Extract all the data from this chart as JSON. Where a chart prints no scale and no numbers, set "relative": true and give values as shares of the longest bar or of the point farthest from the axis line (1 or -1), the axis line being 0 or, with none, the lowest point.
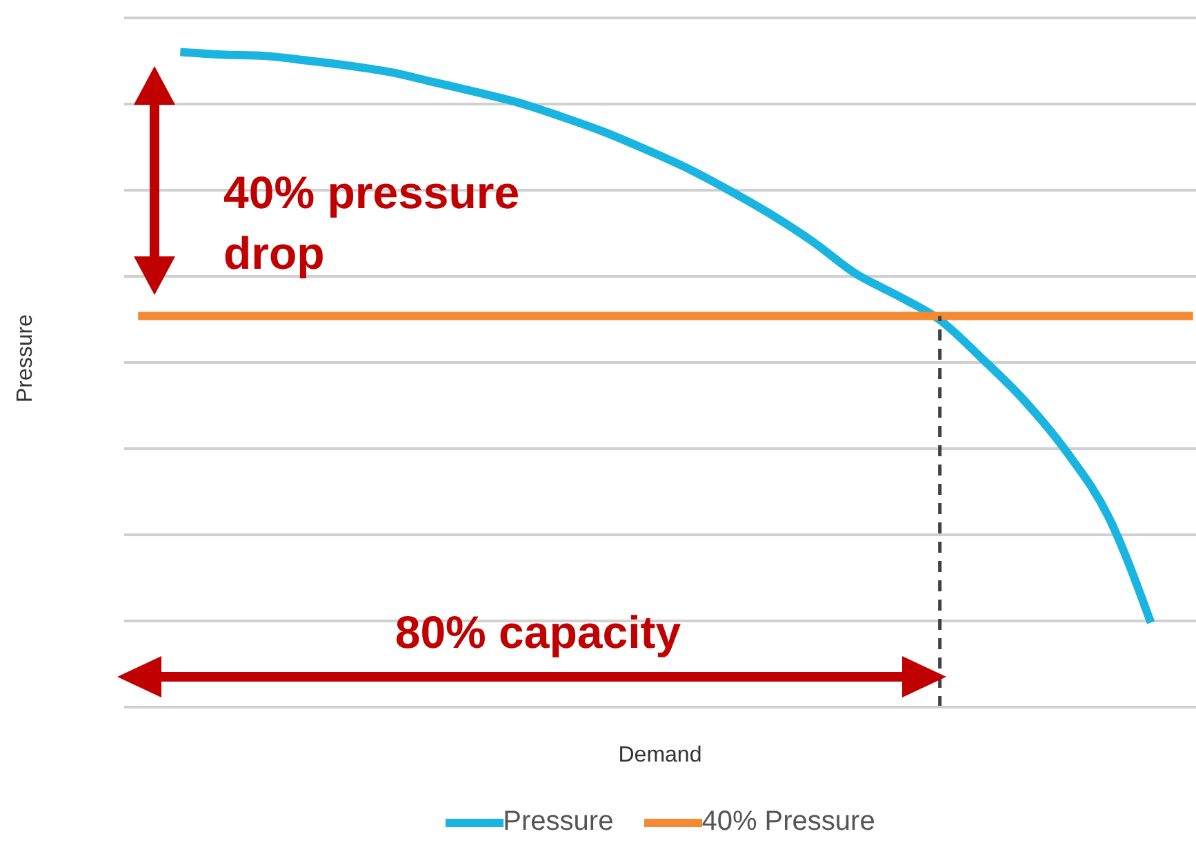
{
  "chart_data": {
    "type": "line",
    "relative": true,
    "xlabel": "Demand",
    "ylabel": "Pressure",
    "grid": "y",
    "legend": "bottom",
    "marker": "none",
    "categories": [
      null,
      null,
      null,
      null,
      null,
      null,
      null,
      null,
      null,
      null,
      null,
      null,
      null,
      null,
      null,
      null,
      null,
      null,
      null,
      null,
      null,
      null,
      null,
      null,
      null,
      null
    ],
    "series": [
      {
        "name": "Pressure",
        "color": "#1ab4e0",
        "values": [
          null,
          1.0,
          0.996,
          0.994,
          0.987,
          0.979,
          0.969,
          0.954,
          0.939,
          0.923,
          0.902,
          0.879,
          0.852,
          0.823,
          0.789,
          0.752,
          0.71,
          0.662,
          0.628,
          0.591,
          0.532,
          0.468,
          0.39,
          0.29,
          0.129,
          null
        ]
      },
      {
        "name": "40% Pressure",
        "color": "#f58a32",
        "values": [
          0.597,
          0.597,
          0.597,
          0.597,
          0.597,
          0.597,
          0.597,
          0.597,
          0.597,
          0.597,
          0.597,
          0.597,
          0.597,
          0.597,
          0.597,
          0.597,
          0.597,
          0.597,
          0.597,
          0.597,
          0.597,
          0.597,
          0.597,
          0.597,
          0.597,
          0.597
        ]
      }
    ],
    "annotations": [
      "40% pressure drop",
      "80% capacity"
    ]
  }
}
